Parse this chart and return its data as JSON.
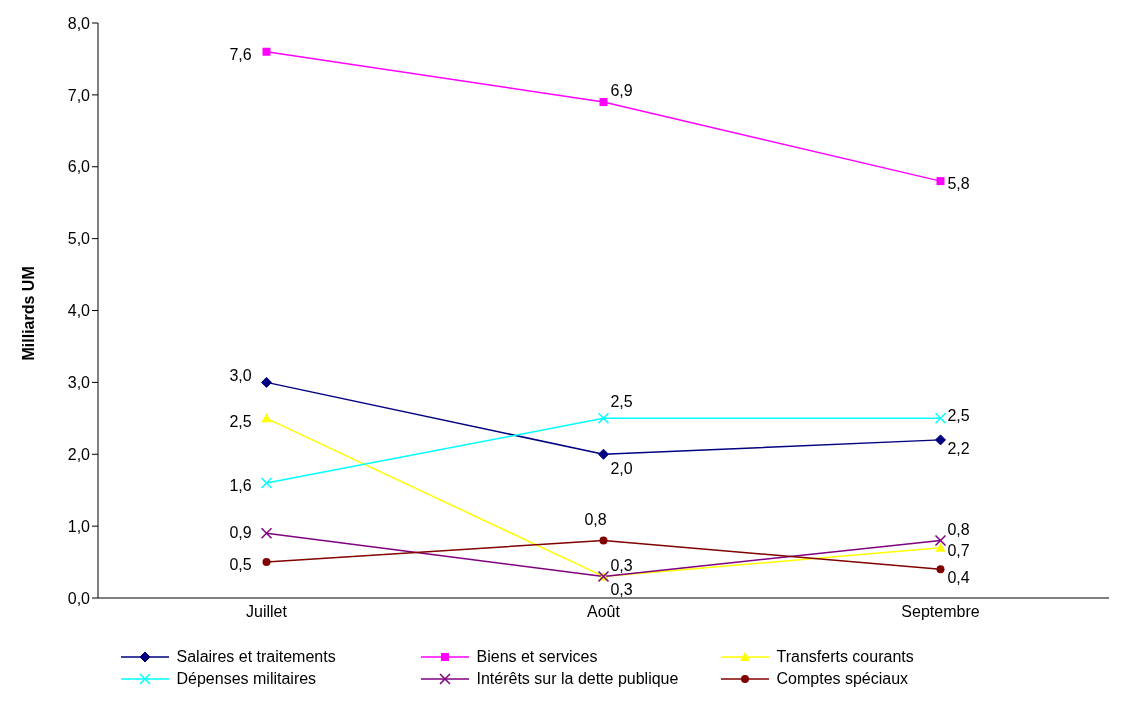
{
  "chart_data": {
    "type": "line",
    "ylabel": "Milliards UM",
    "categories": [
      "Juillet",
      "Août",
      "Septembre"
    ],
    "ylim": [
      0,
      8
    ],
    "yticks": [
      {
        "value": 0,
        "label": "0,0"
      },
      {
        "value": 1,
        "label": "1,0"
      },
      {
        "value": 2,
        "label": "2,0"
      },
      {
        "value": 3,
        "label": "3,0"
      },
      {
        "value": 4,
        "label": "4,0"
      },
      {
        "value": 5,
        "label": "5,0"
      },
      {
        "value": 6,
        "label": "6,0"
      },
      {
        "value": 7,
        "label": "7,0"
      },
      {
        "value": 8,
        "label": "8,0"
      }
    ],
    "grid": false,
    "legend": "bottom",
    "series": [
      {
        "name": "Salaires et traitements",
        "color": "#000080",
        "marker": "diamond",
        "values": [
          3.0,
          2.0,
          2.2
        ],
        "value_labels": [
          "3,0",
          "2,0",
          "2,2"
        ]
      },
      {
        "name": "Biens et services",
        "color": "#ff00ff",
        "marker": "square",
        "values": [
          7.6,
          6.9,
          5.8
        ],
        "value_labels": [
          "7,6",
          "6,9",
          "5,8"
        ]
      },
      {
        "name": "Transferts courants",
        "color": "#ffff00",
        "marker": "triangle",
        "values": [
          2.5,
          0.3,
          0.7
        ],
        "value_labels": [
          "2,5",
          "0,3",
          "0,7"
        ]
      },
      {
        "name": "Dépenses militaires",
        "color": "#00ffff",
        "marker": "cross",
        "values": [
          1.6,
          2.5,
          2.5
        ],
        "value_labels": [
          "1,6",
          "2,5",
          "2,5"
        ]
      },
      {
        "name": "Intérêts sur la dette publique",
        "color": "#800080",
        "marker": "cross",
        "values": [
          0.9,
          0.3,
          0.8
        ],
        "value_labels": [
          "0,9",
          "0,3",
          "0,8"
        ]
      },
      {
        "name": "Comptes spéciaux",
        "color": "#800000",
        "marker": "circle",
        "values": [
          0.5,
          0.8,
          0.4
        ],
        "value_labels": [
          "0,5",
          "0,8",
          "0,4"
        ]
      }
    ]
  }
}
